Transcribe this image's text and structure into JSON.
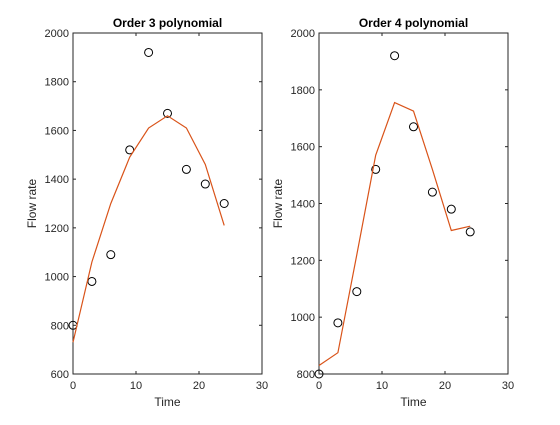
{
  "chart_data": [
    {
      "type": "scatter",
      "title": "Order 3 polynomial",
      "xlabel": "Time",
      "ylabel": "Flow rate",
      "xlim": [
        0,
        30
      ],
      "ylim": [
        600,
        2000
      ],
      "xticks": [
        0,
        10,
        20,
        30
      ],
      "yticks": [
        600,
        800,
        1000,
        1200,
        1400,
        1600,
        1800,
        2000
      ],
      "grid": false,
      "series": [
        {
          "kind": "markers",
          "marker": "circle-open",
          "color": "#000000",
          "x": [
            0,
            3,
            6,
            9,
            12,
            15,
            18,
            21,
            24
          ],
          "y": [
            800,
            980,
            1090,
            1520,
            1920,
            1670,
            1440,
            1380,
            1300
          ]
        },
        {
          "kind": "line",
          "color": "#D95319",
          "x": [
            0,
            3,
            6,
            9,
            12,
            15,
            18,
            21,
            24
          ],
          "y": [
            730,
            1060,
            1300,
            1490,
            1610,
            1660,
            1610,
            1460,
            1210
          ]
        }
      ]
    },
    {
      "type": "scatter",
      "title": "Order 4 polynomial",
      "xlabel": "Time",
      "ylabel": "Flow rate",
      "xlim": [
        0,
        30
      ],
      "ylim": [
        800,
        2000
      ],
      "xticks": [
        0,
        10,
        20,
        30
      ],
      "yticks": [
        800,
        1000,
        1200,
        1400,
        1600,
        1800,
        2000
      ],
      "grid": false,
      "series": [
        {
          "kind": "markers",
          "marker": "circle-open",
          "color": "#000000",
          "x": [
            0,
            3,
            6,
            9,
            12,
            15,
            18,
            21,
            24
          ],
          "y": [
            800,
            980,
            1090,
            1520,
            1920,
            1670,
            1440,
            1380,
            1300
          ]
        },
        {
          "kind": "line",
          "color": "#D95319",
          "x": [
            0,
            3,
            6,
            9,
            12,
            15,
            18,
            21,
            24
          ],
          "y": [
            830,
            875,
            1220,
            1570,
            1755,
            1725,
            1520,
            1305,
            1320
          ]
        }
      ]
    }
  ]
}
